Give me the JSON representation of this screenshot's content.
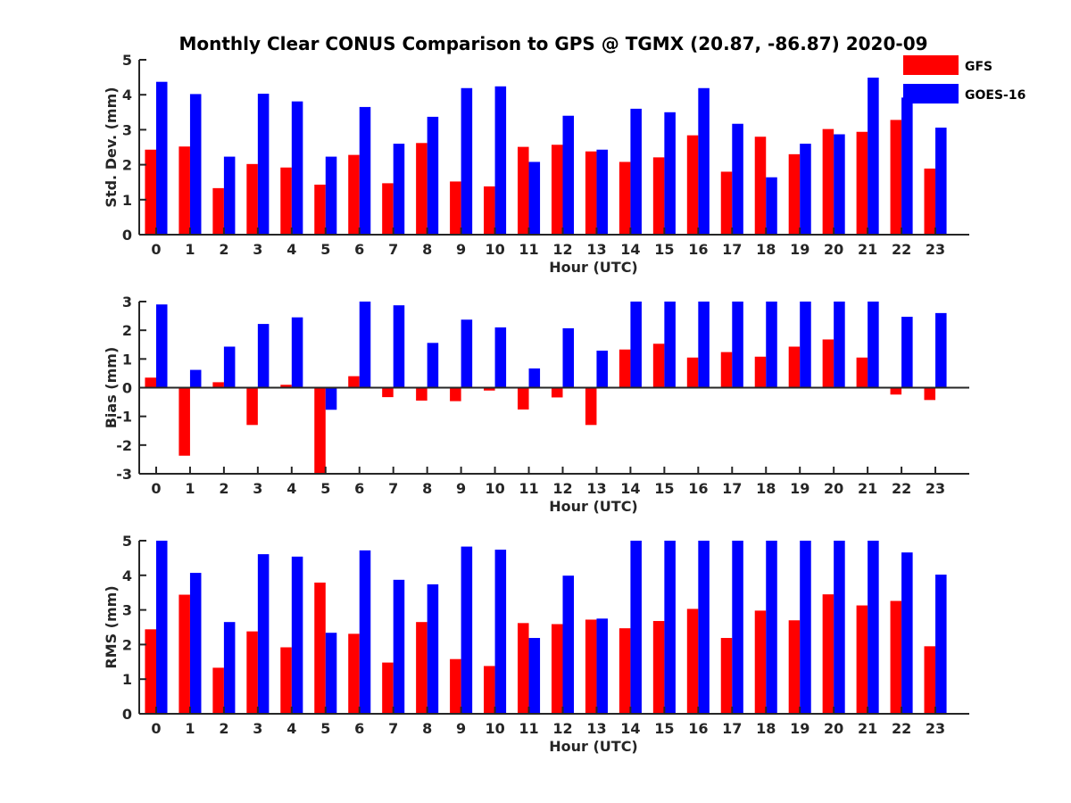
{
  "chart_data": {
    "title": "Monthly Clear CONUS Comparison to GPS @ TGMX (20.87, -86.87) 2020-09",
    "legend": [
      {
        "name": "GFS",
        "color": "#ff0000"
      },
      {
        "name": "GOES-16",
        "color": "#0000ff"
      }
    ],
    "legend_position": "top-right",
    "categories": [
      "0",
      "1",
      "2",
      "3",
      "4",
      "5",
      "6",
      "7",
      "8",
      "9",
      "10",
      "11",
      "12",
      "13",
      "14",
      "15",
      "16",
      "17",
      "18",
      "19",
      "20",
      "21",
      "22",
      "23"
    ],
    "panels": [
      {
        "type": "bar",
        "xlabel": "Hour (UTC)",
        "ylabel": "Std. Dev. (mm)",
        "ylim": [
          0,
          5
        ],
        "yticks": [
          "0",
          "1",
          "2",
          "3",
          "4",
          "5"
        ],
        "series": [
          {
            "name": "GFS",
            "color": "#ff0000",
            "values": [
              2.43,
              2.52,
              1.33,
              2.02,
              1.92,
              1.43,
              2.28,
              1.47,
              2.62,
              1.52,
              1.38,
              2.51,
              2.57,
              2.38,
              2.08,
              2.21,
              2.84,
              1.8,
              2.8,
              2.3,
              3.02,
              2.94,
              3.28,
              1.89
            ]
          },
          {
            "name": "GOES-16",
            "color": "#0000ff",
            "values": [
              4.37,
              4.02,
              2.23,
              4.03,
              3.81,
              2.23,
              3.65,
              2.6,
              3.37,
              4.19,
              4.24,
              2.08,
              3.4,
              2.43,
              3.6,
              3.5,
              4.19,
              3.17,
              1.64,
              2.6,
              2.87,
              4.49,
              3.92,
              3.06
            ]
          }
        ]
      },
      {
        "type": "bar",
        "xlabel": "Hour (UTC)",
        "ylabel": "Bias (mm)",
        "ylim": [
          -3,
          3
        ],
        "yticks": [
          "-3",
          "-2",
          "-1",
          "0",
          "1",
          "2",
          "3"
        ],
        "series": [
          {
            "name": "GFS",
            "color": "#ff0000",
            "values": [
              0.35,
              -2.37,
              0.19,
              -1.3,
              0.1,
              -3.0,
              0.4,
              -0.33,
              -0.45,
              -0.47,
              -0.1,
              -0.76,
              -0.34,
              -1.3,
              1.33,
              1.53,
              1.05,
              1.24,
              1.08,
              1.43,
              1.68,
              1.05,
              -0.24,
              -0.43
            ]
          },
          {
            "name": "GOES-16",
            "color": "#0000ff",
            "values": [
              2.9,
              0.62,
              1.43,
              2.22,
              2.45,
              -0.77,
              3.0,
              2.87,
              1.56,
              2.37,
              2.1,
              0.67,
              2.07,
              1.29,
              3.0,
              3.0,
              3.0,
              3.0,
              3.0,
              3.0,
              3.0,
              3.0,
              2.47,
              2.6
            ]
          }
        ]
      },
      {
        "type": "bar",
        "xlabel": "Hour (UTC)",
        "ylabel": "RMS (mm)",
        "ylim": [
          0,
          5
        ],
        "yticks": [
          "0",
          "1",
          "2",
          "3",
          "4",
          "5"
        ],
        "series": [
          {
            "name": "GFS",
            "color": "#ff0000",
            "values": [
              2.44,
              3.44,
              1.33,
              2.38,
              1.92,
              3.79,
              2.31,
              1.48,
              2.65,
              1.58,
              1.38,
              2.62,
              2.59,
              2.72,
              2.47,
              2.68,
              3.03,
              2.19,
              2.98,
              2.7,
              3.45,
              3.13,
              3.26,
              1.95
            ]
          },
          {
            "name": "GOES-16",
            "color": "#0000ff",
            "values": [
              5.0,
              4.07,
              2.65,
              4.61,
              4.54,
              2.34,
              4.72,
              3.87,
              3.74,
              4.83,
              4.74,
              2.19,
              3.99,
              2.75,
              5.0,
              5.0,
              5.0,
              5.0,
              5.0,
              5.0,
              5.0,
              5.0,
              4.66,
              4.02
            ]
          }
        ]
      }
    ]
  }
}
